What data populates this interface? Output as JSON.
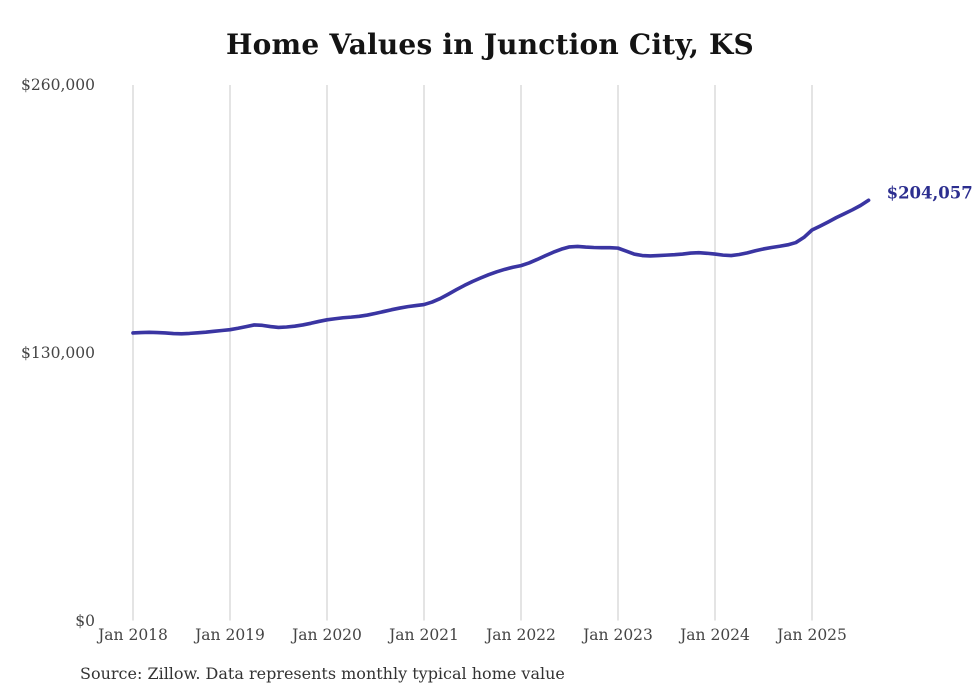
{
  "chart": {
    "title": "Home Values in Junction City, KS",
    "source": "Source: Zillow. Data represents monthly typical home value",
    "end_label": "$204,057"
  },
  "chart_data": {
    "type": "line",
    "title": "Home Values in Junction City, KS",
    "series_name": "Monthly typical home value",
    "x_start": "Jan 2018",
    "x_end": "Aug 2025",
    "x_tick_labels": [
      "Jan 2018",
      "Jan 2019",
      "Jan 2020",
      "Jan 2021",
      "Jan 2022",
      "Jan 2023",
      "Jan 2024",
      "Jan 2025"
    ],
    "x_tick_month_indices": [
      0,
      12,
      24,
      36,
      48,
      60,
      72,
      84
    ],
    "y_ticks": [
      {
        "label": "$260,000",
        "value": 260000
      },
      {
        "label": "$130,000",
        "value": 130000
      },
      {
        "label": "$0",
        "value": 0
      }
    ],
    "ylim": [
      0,
      260000
    ],
    "grid": "vertical",
    "legend": "none",
    "line_color": "#3a35a2",
    "grid_color": "#c8c8c8",
    "end_label_color": "#2c2e8f",
    "final_value": 204057,
    "values": [
      139600,
      139800,
      139900,
      139800,
      139600,
      139300,
      139200,
      139400,
      139700,
      140000,
      140400,
      140800,
      141200,
      141900,
      142700,
      143500,
      143300,
      142700,
      142300,
      142500,
      142900,
      143500,
      144300,
      145200,
      146000,
      146500,
      147000,
      147300,
      147700,
      148300,
      149100,
      150000,
      150900,
      151700,
      152400,
      152900,
      153400,
      154600,
      156300,
      158400,
      160600,
      162700,
      164600,
      166300,
      167900,
      169300,
      170500,
      171500,
      172300,
      173600,
      175300,
      177100,
      178800,
      180300,
      181400,
      181600,
      181300,
      181100,
      181000,
      181000,
      180800,
      179400,
      177900,
      177200,
      177000,
      177200,
      177400,
      177600,
      177900,
      178400,
      178600,
      178300,
      177900,
      177400,
      177200,
      177700,
      178500,
      179500,
      180400,
      181100,
      181700,
      182400,
      183500,
      186000,
      189600,
      191500,
      193500,
      195600,
      197500,
      199400,
      201500,
      204057
    ]
  }
}
